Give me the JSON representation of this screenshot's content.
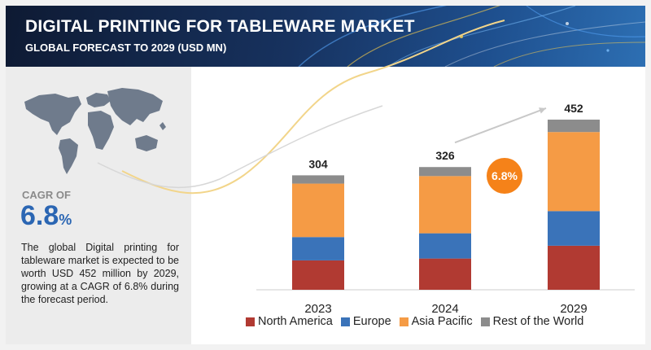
{
  "header": {
    "title": "DIGITAL PRINTING FOR TABLEWARE MARKET",
    "subtitle": "GLOBAL FORECAST TO 2029 (USD MN)"
  },
  "sidebar": {
    "map_icon": "world-map-icon",
    "cagr_label": "CAGR OF",
    "cagr_value": "6.8",
    "cagr_unit": "%",
    "description": "The global Digital printing for tableware market is expected to be worth USD  452 million by 2029, growing at a CAGR of 6.8% during the forecast period."
  },
  "colors": {
    "north_america": "#b13a32",
    "europe": "#3a73b9",
    "asia_pacific": "#f59b45",
    "rest_of_world": "#8c8c8c",
    "cagr_bubble": "#f58219",
    "cagr_text": "#2b66b3",
    "banner": "#17325f"
  },
  "chart_data": {
    "type": "bar",
    "stacked": true,
    "categories": [
      "2023",
      "2024",
      "2029"
    ],
    "totals": [
      "304",
      "326",
      "452"
    ],
    "series": [
      {
        "name": "North America",
        "values": [
          78,
          83,
          117
        ]
      },
      {
        "name": "Europe",
        "values": [
          62,
          67,
          92
        ]
      },
      {
        "name": "Asia Pacific",
        "values": [
          142,
          152,
          210
        ]
      },
      {
        "name": "Rest of the World",
        "values": [
          22,
          24,
          33
        ]
      }
    ],
    "ylim": [
      0,
      480
    ],
    "cagr_annotation": "6.8%",
    "legend_position": "bottom",
    "grid": false
  }
}
